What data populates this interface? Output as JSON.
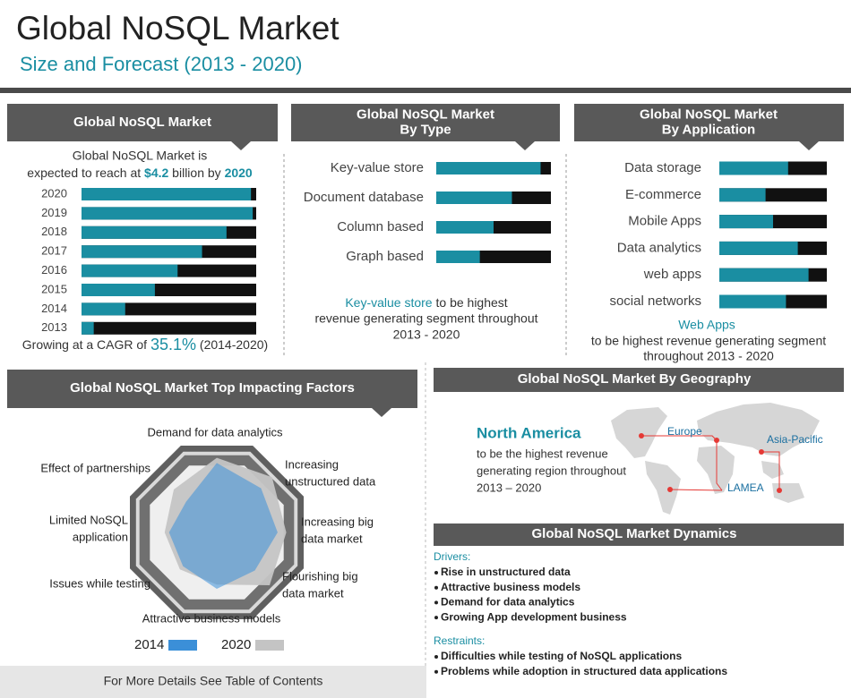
{
  "header": {
    "title": "Global NoSQL Market",
    "subtitle": "Size and Forecast (2013 - 2020)"
  },
  "chart_data": [
    {
      "type": "bar",
      "title": "Global NoSQL Market",
      "note": [
        "Global NoSQL Market is",
        "expected to reach at ",
        "$4.2",
        " billion by ",
        "2020"
      ],
      "footnote": [
        "Growing at a CAGR of ",
        "35.1%",
        " (2014-2020)"
      ],
      "categories": [
        "2020",
        "2019",
        "2018",
        "2017",
        "2016",
        "2015",
        "2014",
        "2013"
      ],
      "values": [
        97,
        98,
        83,
        69,
        55,
        42,
        25,
        7
      ],
      "xlim": [
        0,
        100
      ],
      "color": "#1a8ea2",
      "track_color": "#111111"
    },
    {
      "type": "bar",
      "title": "Global NoSQL Market By Type",
      "note": [
        "Key-value store",
        " to be highest",
        "revenue generating segment throughout",
        "2013 - 2020"
      ],
      "categories": [
        "Key-value store",
        "Document database",
        "Column based",
        "Graph based"
      ],
      "values": [
        91,
        66,
        50,
        38
      ],
      "xlim": [
        0,
        100
      ],
      "color": "#1a8ea2",
      "track_color": "#111111"
    },
    {
      "type": "bar",
      "title": "Global NoSQL Market By Application",
      "note": [
        "Web Apps",
        "to be highest revenue generating segment",
        "throughout 2013 - 2020"
      ],
      "categories": [
        "Data storage",
        "E-commerce",
        "Mobile Apps",
        "Data analytics",
        "web apps",
        "social networks"
      ],
      "values": [
        64,
        43,
        50,
        73,
        83,
        62
      ],
      "xlim": [
        0,
        100
      ],
      "color": "#1a8ea2",
      "track_color": "#111111"
    },
    {
      "type": "radar",
      "title": "Global NoSQL Market Top Impacting Factors",
      "categories": [
        "Demand for data analytics",
        "Increasing unstructured data",
        "Increasing big data market",
        "Flourishing big data market",
        "Attractive business models",
        "Issues while testing",
        "Limited NoSQL application",
        "Effect of partnerships"
      ],
      "ylim": [
        0,
        100
      ],
      "series": [
        {
          "name": "2014",
          "color": "#3b8fd8",
          "values": [
            80,
            72,
            70,
            62,
            65,
            55,
            55,
            50
          ]
        },
        {
          "name": "2020",
          "color": "#c4c4c4",
          "values": [
            86,
            90,
            80,
            86,
            60,
            60,
            60,
            70
          ]
        }
      ]
    }
  ],
  "geography": {
    "title": "Global NoSQL Market By Geography",
    "highlight": "North America",
    "text": [
      "to be the highest revenue",
      "generating region throughout",
      "2013 – 2020"
    ],
    "regions": [
      "Europe",
      "Asia-Pacific",
      "LAMEA"
    ]
  },
  "dynamics": {
    "title": "Global NoSQL Market Dynamics",
    "drivers_label": "Drivers:",
    "drivers": [
      "Rise in unstructured data",
      "Attractive business models",
      "Demand for data analytics",
      "Growing App development business"
    ],
    "restraints_label": "Restraints:",
    "restraints": [
      "Difficulties while testing of NoSQL applications",
      "Problems while adoption in structured data applications"
    ]
  },
  "footer": "For More Details See Table of Contents"
}
